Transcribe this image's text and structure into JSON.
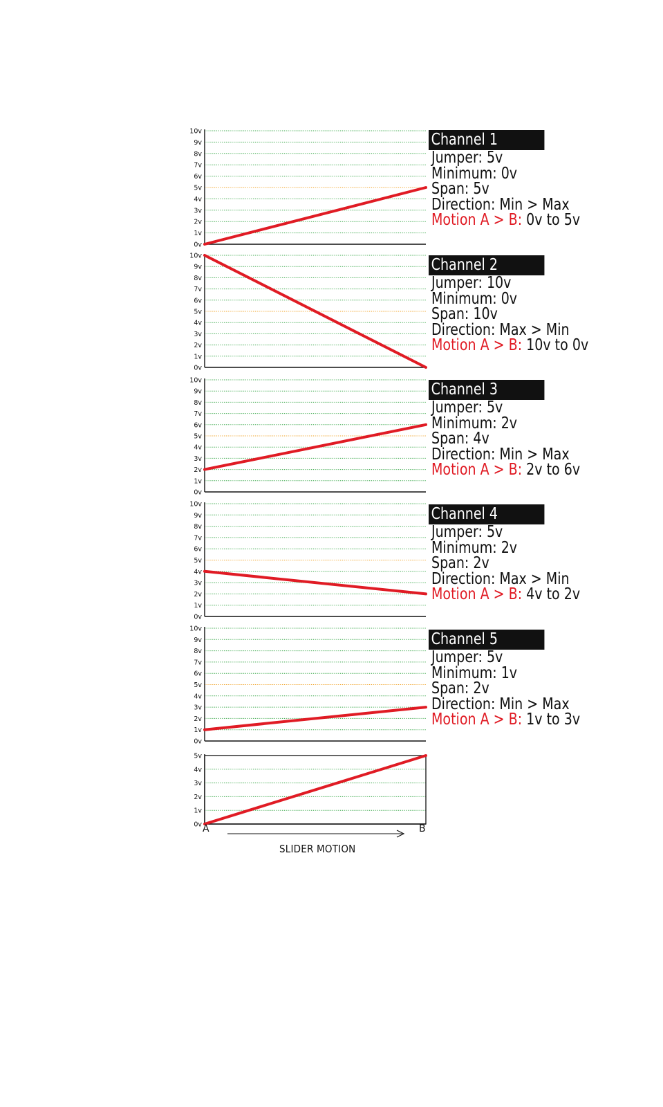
{
  "chart_data": [
    {
      "type": "line",
      "y_ticks": [
        "0v",
        "1v",
        "2v",
        "3v",
        "4v",
        "5v",
        "6v",
        "7v",
        "8v",
        "9v",
        "10v"
      ],
      "ylim": [
        0,
        10
      ],
      "highlight_gridline": 5,
      "series": [
        {
          "x": [
            "A",
            "B"
          ],
          "y": [
            0,
            5
          ]
        }
      ],
      "colors": {
        "line": "#e01b24",
        "grid": "#3aa84a",
        "highlight": "#f0a020"
      }
    },
    {
      "type": "line",
      "y_ticks": [
        "0v",
        "1v",
        "2v",
        "3v",
        "4v",
        "5v",
        "6v",
        "7v",
        "8v",
        "9v",
        "10v"
      ],
      "ylim": [
        0,
        10
      ],
      "highlight_gridline": 5,
      "series": [
        {
          "x": [
            "A",
            "B"
          ],
          "y": [
            10,
            0
          ]
        }
      ]
    },
    {
      "type": "line",
      "y_ticks": [
        "0v",
        "1v",
        "2v",
        "3v",
        "4v",
        "5v",
        "6v",
        "7v",
        "8v",
        "9v",
        "10v"
      ],
      "ylim": [
        0,
        10
      ],
      "highlight_gridline": 5,
      "series": [
        {
          "x": [
            "A",
            "B"
          ],
          "y": [
            2,
            6
          ]
        }
      ]
    },
    {
      "type": "line",
      "y_ticks": [
        "0v",
        "1v",
        "2v",
        "3v",
        "4v",
        "5v",
        "6v",
        "7v",
        "8v",
        "9v",
        "10v"
      ],
      "ylim": [
        0,
        10
      ],
      "highlight_gridline": 5,
      "series": [
        {
          "x": [
            "A",
            "B"
          ],
          "y": [
            4,
            2
          ]
        }
      ]
    },
    {
      "type": "line",
      "y_ticks": [
        "0v",
        "1v",
        "2v",
        "3v",
        "4v",
        "5v",
        "6v",
        "7v",
        "8v",
        "9v",
        "10v"
      ],
      "ylim": [
        0,
        10
      ],
      "highlight_gridline": 5,
      "series": [
        {
          "x": [
            "A",
            "B"
          ],
          "y": [
            1,
            3
          ]
        }
      ]
    },
    {
      "type": "line",
      "y_ticks": [
        "0v",
        "1v",
        "2v",
        "3v",
        "4v",
        "5v"
      ],
      "ylim": [
        0,
        5
      ],
      "highlight_gridline": null,
      "x_labels": [
        "A",
        "B"
      ],
      "xlabel": "SLIDER MOTION",
      "series": [
        {
          "x": [
            "A",
            "B"
          ],
          "y": [
            0,
            5
          ]
        }
      ]
    }
  ],
  "channels": [
    {
      "title": "Channel 1",
      "jumper": "Jumper: 5v",
      "minimum": "Minimum: 0v",
      "span": "Span: 5v",
      "direction": "Direction: Min > Max",
      "motion_label": "Motion A > B:",
      "motion_value": " 0v to 5v"
    },
    {
      "title": "Channel 2",
      "jumper": "Jumper: 10v",
      "minimum": "Minimum: 0v",
      "span": "Span: 10v",
      "direction": "Direction: Max > Min",
      "motion_label": "Motion A > B:",
      "motion_value": " 10v to 0v"
    },
    {
      "title": "Channel 3",
      "jumper": "Jumper: 5v",
      "minimum": "Minimum: 2v",
      "span": "Span: 4v",
      "direction": "Direction: Min > Max",
      "motion_label": "Motion A > B:",
      "motion_value": " 2v to 6v"
    },
    {
      "title": "Channel 4",
      "jumper": "Jumper: 5v",
      "minimum": "Minimum: 2v",
      "span": "Span: 2v",
      "direction": "Direction: Max > Min",
      "motion_label": "Motion A > B:",
      "motion_value": " 4v to 2v"
    },
    {
      "title": "Channel 5",
      "jumper": "Jumper: 5v",
      "minimum": "Minimum: 1v",
      "span": "Span: 2v",
      "direction": "Direction: Min > Max",
      "motion_label": "Motion A > B:",
      "motion_value": " 1v to 3v"
    }
  ],
  "slider": {
    "caption": "SLIDER MOTION",
    "a_label": "A",
    "b_label": "B"
  }
}
